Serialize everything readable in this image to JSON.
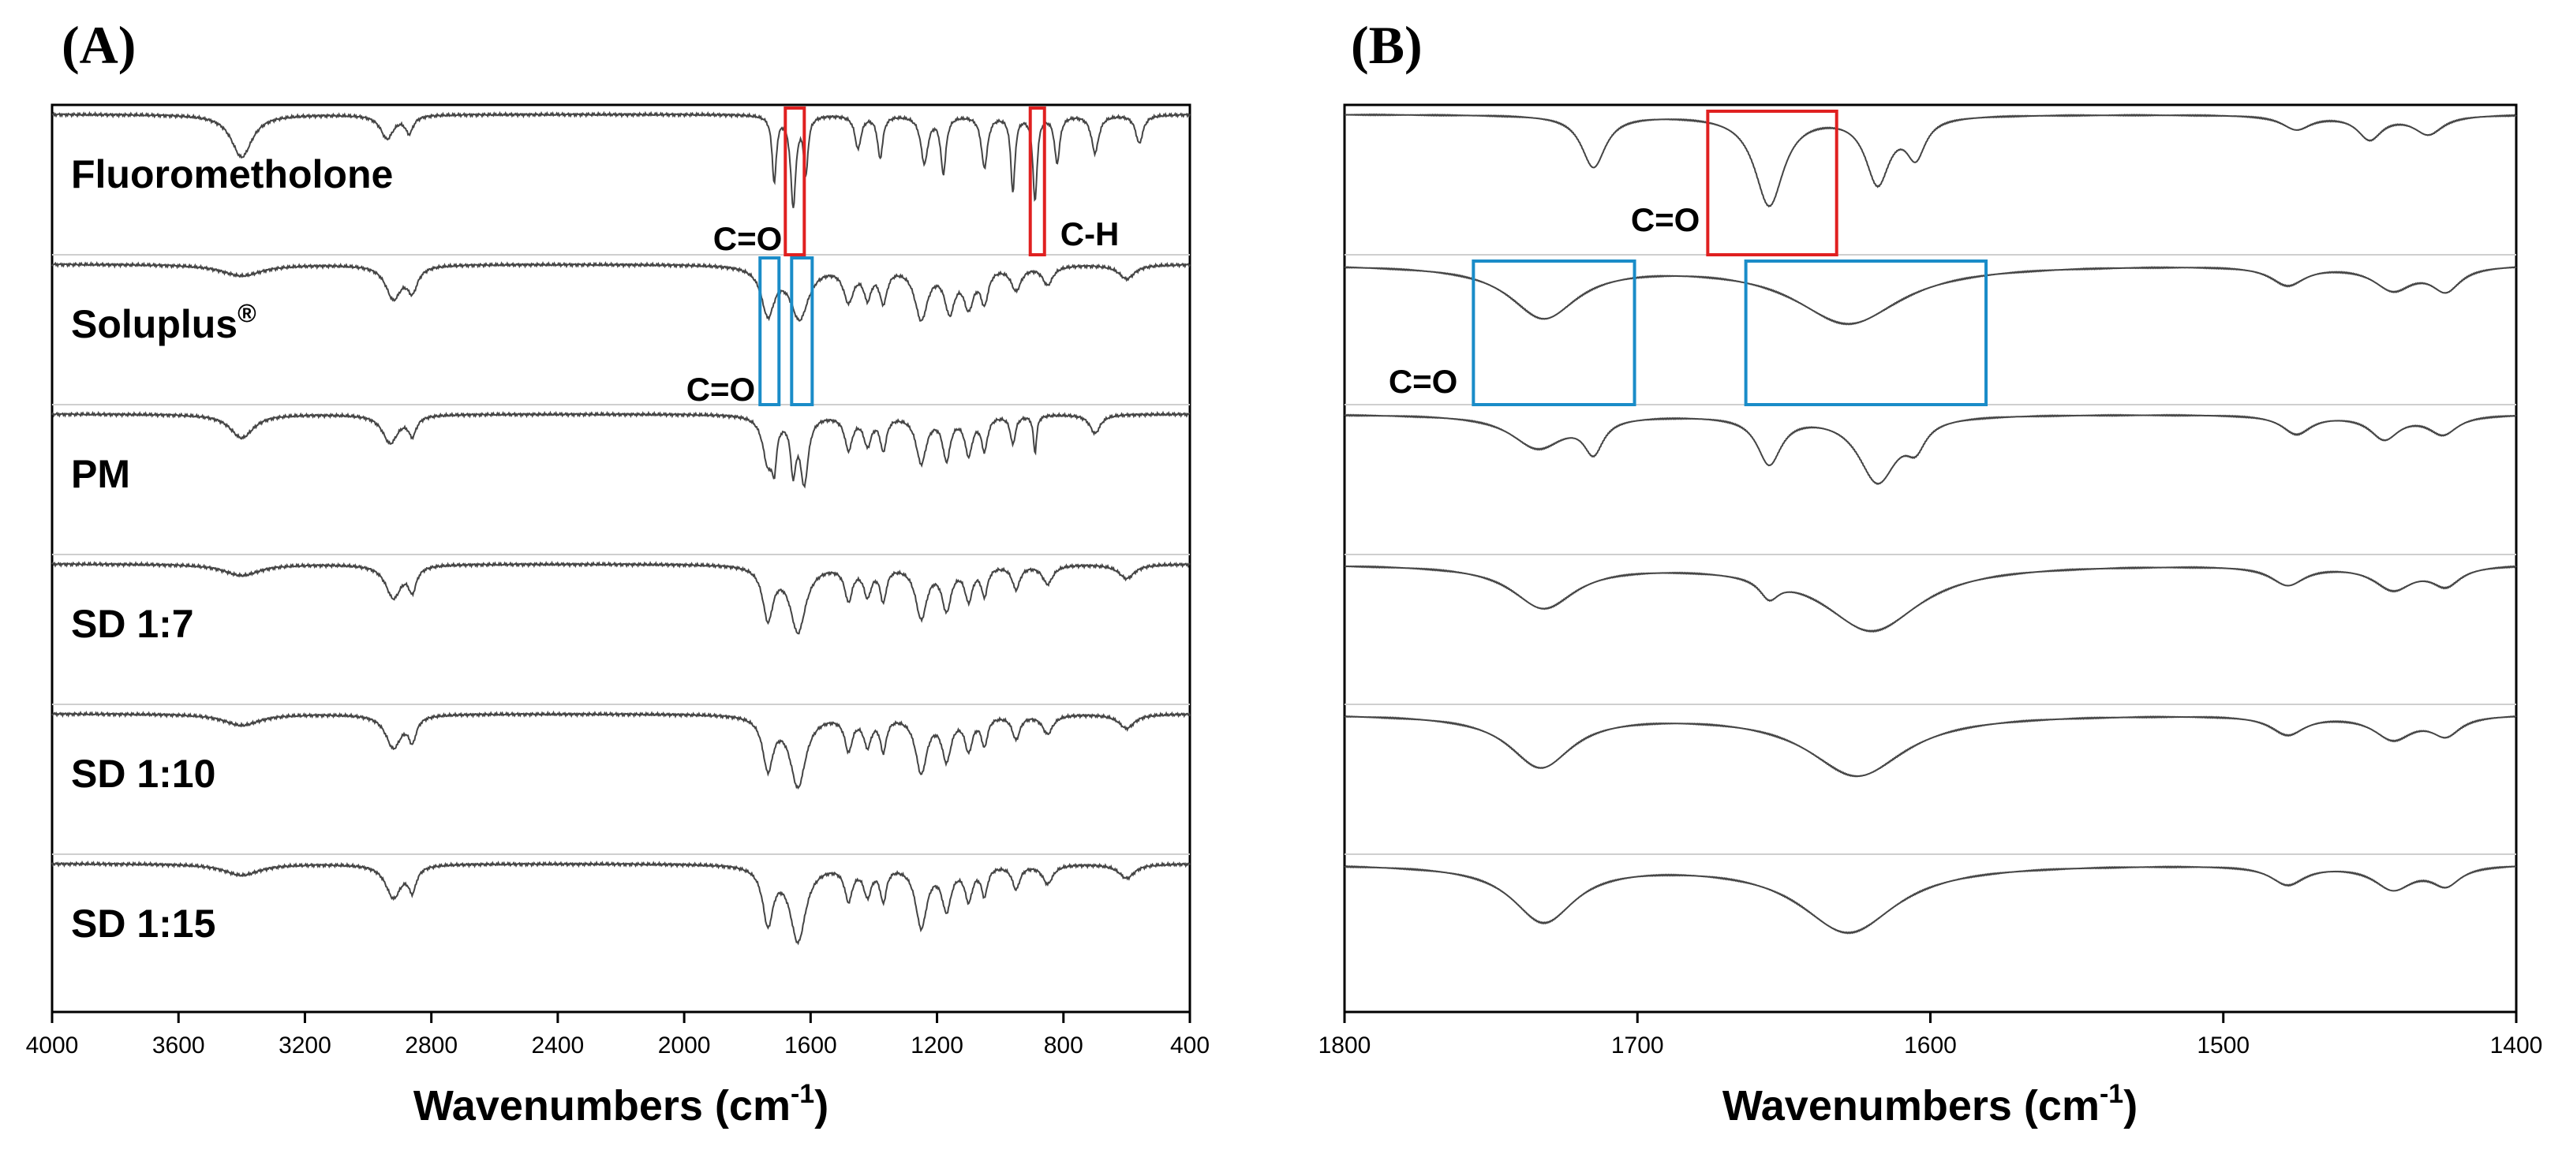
{
  "chart_data": [
    {
      "type": "line",
      "panel": "(A)",
      "title": "",
      "xlabel": "Wavenumbers (cm",
      "xlabel_sup": "-1",
      "xlabel_close": ")",
      "ylabel": "",
      "xlim": [
        4000,
        400
      ],
      "x_reversed": true,
      "xticks": [
        "4000",
        "3600",
        "3200",
        "2800",
        "2400",
        "2000",
        "1600",
        "1200",
        "800",
        "400"
      ],
      "grid": false,
      "series": [
        {
          "name": "Fluorometholone",
          "peaks": [
            [
              3400,
              0.45,
              40
            ],
            [
              2940,
              0.25,
              25
            ],
            [
              2870,
              0.18,
              15
            ],
            [
              1715,
              0.7,
              8
            ],
            [
              1655,
              0.95,
              10
            ],
            [
              1615,
              0.6,
              8
            ],
            [
              1450,
              0.35,
              12
            ],
            [
              1380,
              0.45,
              10
            ],
            [
              1240,
              0.5,
              14
            ],
            [
              1180,
              0.6,
              10
            ],
            [
              1050,
              0.55,
              12
            ],
            [
              960,
              0.8,
              8
            ],
            [
              890,
              0.9,
              8
            ],
            [
              820,
              0.5,
              10
            ],
            [
              700,
              0.4,
              14
            ],
            [
              560,
              0.3,
              14
            ]
          ]
        },
        {
          "name": "Soluplus®",
          "peaks": [
            [
              3400,
              0.12,
              80
            ],
            [
              2920,
              0.35,
              30
            ],
            [
              2860,
              0.25,
              20
            ],
            [
              1735,
              0.5,
              25
            ],
            [
              1635,
              0.55,
              35
            ],
            [
              1480,
              0.35,
              20
            ],
            [
              1420,
              0.3,
              15
            ],
            [
              1370,
              0.35,
              15
            ],
            [
              1250,
              0.55,
              25
            ],
            [
              1160,
              0.45,
              20
            ],
            [
              1100,
              0.4,
              20
            ],
            [
              1050,
              0.35,
              15
            ],
            [
              950,
              0.25,
              20
            ],
            [
              850,
              0.2,
              20
            ],
            [
              600,
              0.15,
              30
            ]
          ]
        },
        {
          "name": "PM",
          "peaks": [
            [
              3400,
              0.25,
              45
            ],
            [
              2930,
              0.3,
              30
            ],
            [
              2860,
              0.2,
              15
            ],
            [
              1735,
              0.5,
              20
            ],
            [
              1715,
              0.4,
              8
            ],
            [
              1655,
              0.55,
              10
            ],
            [
              1620,
              0.7,
              15
            ],
            [
              1480,
              0.35,
              15
            ],
            [
              1420,
              0.3,
              15
            ],
            [
              1370,
              0.35,
              12
            ],
            [
              1250,
              0.5,
              20
            ],
            [
              1170,
              0.45,
              15
            ],
            [
              1100,
              0.4,
              15
            ],
            [
              1050,
              0.35,
              12
            ],
            [
              960,
              0.3,
              10
            ],
            [
              890,
              0.4,
              6
            ],
            [
              700,
              0.2,
              20
            ]
          ]
        },
        {
          "name": "SD 1:7",
          "peaks": [
            [
              3400,
              0.12,
              70
            ],
            [
              2920,
              0.35,
              30
            ],
            [
              2860,
              0.25,
              15
            ],
            [
              1735,
              0.55,
              20
            ],
            [
              1640,
              0.7,
              30
            ],
            [
              1480,
              0.35,
              15
            ],
            [
              1420,
              0.3,
              15
            ],
            [
              1370,
              0.35,
              12
            ],
            [
              1250,
              0.55,
              22
            ],
            [
              1170,
              0.45,
              18
            ],
            [
              1100,
              0.35,
              15
            ],
            [
              1050,
              0.3,
              12
            ],
            [
              950,
              0.25,
              15
            ],
            [
              850,
              0.2,
              20
            ],
            [
              600,
              0.15,
              30
            ]
          ]
        },
        {
          "name": "SD 1:10",
          "peaks": [
            [
              3400,
              0.12,
              70
            ],
            [
              2920,
              0.35,
              30
            ],
            [
              2860,
              0.25,
              15
            ],
            [
              1735,
              0.55,
              20
            ],
            [
              1640,
              0.75,
              30
            ],
            [
              1480,
              0.35,
              15
            ],
            [
              1420,
              0.3,
              15
            ],
            [
              1370,
              0.35,
              12
            ],
            [
              1250,
              0.6,
              22
            ],
            [
              1170,
              0.45,
              18
            ],
            [
              1100,
              0.35,
              15
            ],
            [
              1050,
              0.3,
              12
            ],
            [
              950,
              0.25,
              15
            ],
            [
              850,
              0.2,
              20
            ],
            [
              600,
              0.15,
              30
            ]
          ]
        },
        {
          "name": "SD 1:15",
          "peaks": [
            [
              3400,
              0.12,
              70
            ],
            [
              2920,
              0.35,
              30
            ],
            [
              2860,
              0.25,
              15
            ],
            [
              1735,
              0.6,
              20
            ],
            [
              1640,
              0.8,
              30
            ],
            [
              1480,
              0.35,
              15
            ],
            [
              1420,
              0.3,
              15
            ],
            [
              1370,
              0.35,
              12
            ],
            [
              1250,
              0.65,
              22
            ],
            [
              1170,
              0.45,
              18
            ],
            [
              1100,
              0.35,
              15
            ],
            [
              1050,
              0.3,
              12
            ],
            [
              950,
              0.25,
              15
            ],
            [
              850,
              0.2,
              20
            ],
            [
              600,
              0.15,
              30
            ]
          ]
        }
      ],
      "annotations": [
        {
          "text": "C=O",
          "color": "#e02020",
          "x_range": [
            1680,
            1620
          ],
          "row": 0
        },
        {
          "text": "C-H",
          "color": "#e02020",
          "x_range": [
            905,
            860
          ],
          "row": 0
        },
        {
          "text": "C=O",
          "color": "#1a8cc8",
          "x_range": [
            1760,
            1700
          ],
          "row": 1
        },
        {
          "text": "",
          "color": "#1a8cc8",
          "x_range": [
            1660,
            1595
          ],
          "row": 1
        }
      ]
    },
    {
      "type": "line",
      "panel": "(B)",
      "title": "",
      "xlabel": "Wavenumbers (cm",
      "xlabel_sup": "-1",
      "xlabel_close": ")",
      "ylabel": "",
      "xlim": [
        1800,
        1400
      ],
      "x_reversed": true,
      "xticks": [
        "1800",
        "1700",
        "1600",
        "1500",
        "1400"
      ],
      "grid": false,
      "series": [
        {
          "name": "Fluorometholone",
          "peaks": [
            [
              1715,
              0.55,
              5
            ],
            [
              1655,
              0.95,
              6
            ],
            [
              1618,
              0.7,
              5
            ],
            [
              1605,
              0.4,
              4
            ],
            [
              1475,
              0.15,
              6
            ],
            [
              1450,
              0.25,
              5
            ],
            [
              1430,
              0.2,
              6
            ]
          ]
        },
        {
          "name": "Soluplus®",
          "peaks": [
            [
              1732,
              0.55,
              14
            ],
            [
              1628,
              0.62,
              22
            ],
            [
              1478,
              0.2,
              7
            ],
            [
              1442,
              0.25,
              8
            ],
            [
              1424,
              0.25,
              6
            ]
          ]
        },
        {
          "name": "PM",
          "peaks": [
            [
              1734,
              0.35,
              11
            ],
            [
              1715,
              0.35,
              4
            ],
            [
              1655,
              0.5,
              5
            ],
            [
              1618,
              0.7,
              8
            ],
            [
              1605,
              0.25,
              4
            ],
            [
              1475,
              0.2,
              6
            ],
            [
              1445,
              0.25,
              6
            ],
            [
              1425,
              0.2,
              6
            ]
          ]
        },
        {
          "name": "SD 1:7",
          "peaks": [
            [
              1732,
              0.45,
              13
            ],
            [
              1655,
              0.2,
              4
            ],
            [
              1620,
              0.7,
              20
            ],
            [
              1478,
              0.2,
              7
            ],
            [
              1442,
              0.25,
              8
            ],
            [
              1424,
              0.2,
              6
            ]
          ]
        },
        {
          "name": "SD 1:10",
          "peaks": [
            [
              1733,
              0.55,
              13
            ],
            [
              1625,
              0.65,
              20
            ],
            [
              1478,
              0.2,
              7
            ],
            [
              1442,
              0.25,
              8
            ],
            [
              1424,
              0.2,
              6
            ]
          ]
        },
        {
          "name": "SD 1:15",
          "peaks": [
            [
              1732,
              0.6,
              13
            ],
            [
              1628,
              0.72,
              20
            ],
            [
              1478,
              0.2,
              7
            ],
            [
              1442,
              0.25,
              8
            ],
            [
              1424,
              0.2,
              6
            ]
          ]
        }
      ],
      "annotations": [
        {
          "text": "C=O",
          "color": "#e02020",
          "x_range": [
            1676,
            1632
          ],
          "row": 0
        },
        {
          "text": "C=O",
          "color": "#1a8cc8",
          "x_range": [
            1756,
            1701
          ],
          "row": 1
        },
        {
          "text": "",
          "color": "#1a8cc8",
          "x_range": [
            1663,
            1581
          ],
          "row": 1
        }
      ]
    }
  ]
}
